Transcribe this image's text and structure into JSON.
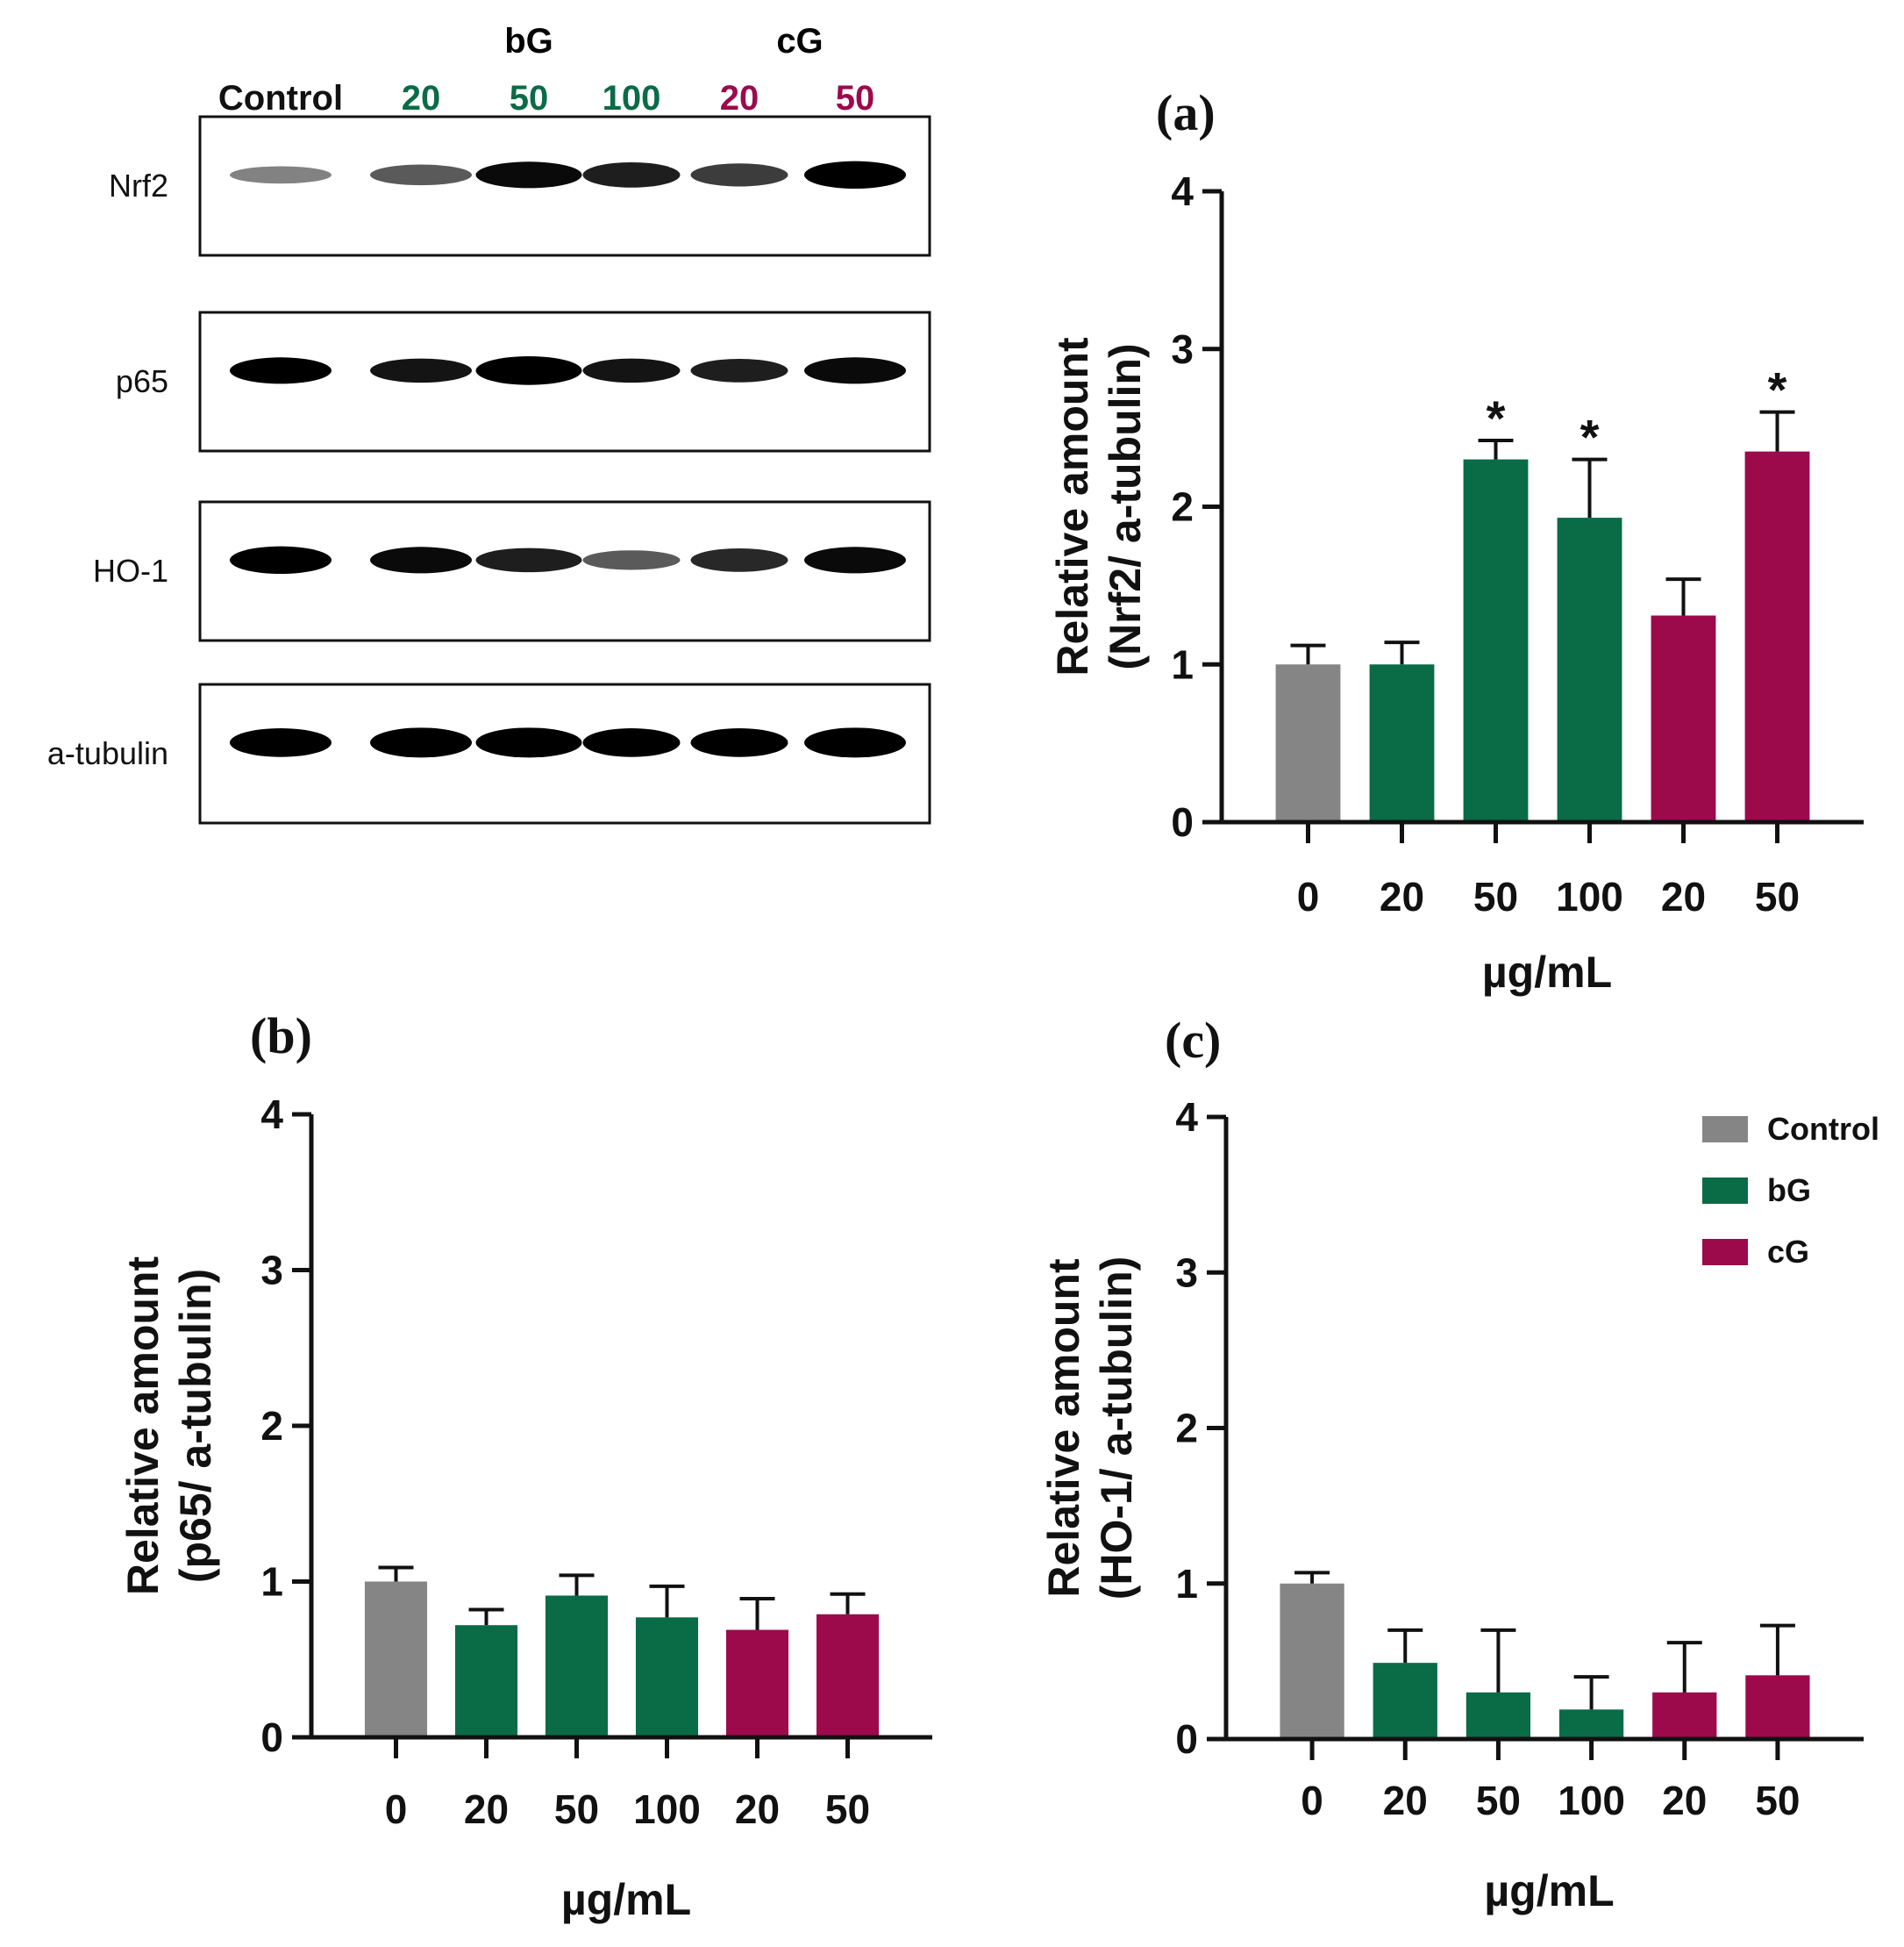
{
  "colors": {
    "Control": "#858585",
    "bG": "#0a6b47",
    "cG": "#9c0a4c",
    "axis": "#111111"
  },
  "blot": {
    "group_labels": [
      {
        "text": "bG",
        "color_key": "bG"
      },
      {
        "text": "cG",
        "color_key": "cG"
      }
    ],
    "lane_labels": [
      {
        "text": "Control",
        "color_key": "Control_text"
      },
      {
        "text": "20",
        "color_key": "bG"
      },
      {
        "text": "50",
        "color_key": "bG"
      },
      {
        "text": "100",
        "color_key": "bG"
      },
      {
        "text": "20",
        "color_key": "cG"
      },
      {
        "text": "50",
        "color_key": "cG"
      }
    ],
    "rows": [
      {
        "label": "Nrf2",
        "intensity": [
          0.35,
          0.55,
          0.95,
          0.85,
          0.7,
          1.0
        ],
        "thickness": [
          0.45,
          0.6,
          0.85,
          0.8,
          0.7,
          0.9
        ]
      },
      {
        "label": "p65",
        "intensity": [
          1.0,
          0.9,
          1.0,
          0.9,
          0.85,
          0.95
        ],
        "thickness": [
          0.85,
          0.75,
          0.95,
          0.75,
          0.72,
          0.85
        ]
      },
      {
        "label": "HO-1",
        "intensity": [
          1.0,
          0.95,
          0.85,
          0.55,
          0.8,
          0.95
        ],
        "thickness": [
          0.9,
          0.85,
          0.75,
          0.55,
          0.72,
          0.85
        ]
      },
      {
        "label": "a-tubulin",
        "intensity": [
          1.0,
          1.0,
          1.0,
          1.0,
          1.0,
          1.0
        ],
        "thickness": [
          0.95,
          1.0,
          1.0,
          0.95,
          0.95,
          1.0
        ]
      }
    ]
  },
  "chart_data": [
    {
      "id": "a",
      "panel_label": "(a)",
      "type": "bar",
      "title": "",
      "ylabel_line1": "Relative amount",
      "ylabel_line2": "(Nrf2/ a-tubulin)",
      "xlabel": "µg/mL",
      "ylim": [
        0,
        4
      ],
      "yticks": [
        "0",
        "1",
        "2",
        "3",
        "4"
      ],
      "categories": [
        "0",
        "20",
        "50",
        "100",
        "20",
        "50"
      ],
      "groups": [
        "Control",
        "bG",
        "bG",
        "bG",
        "cG",
        "cG"
      ],
      "values": [
        1.0,
        1.0,
        2.3,
        1.93,
        1.31,
        2.35
      ],
      "errors": [
        0.12,
        0.14,
        0.12,
        0.37,
        0.23,
        0.25
      ],
      "significance": [
        "",
        "",
        "*",
        "*",
        "",
        "*"
      ]
    },
    {
      "id": "b",
      "panel_label": "(b)",
      "type": "bar",
      "title": "",
      "ylabel_line1": "Relative amount",
      "ylabel_line2": "(p65/ a-tubulin)",
      "xlabel": "µg/mL",
      "ylim": [
        0,
        4
      ],
      "yticks": [
        "0",
        "1",
        "2",
        "3",
        "4"
      ],
      "categories": [
        "0",
        "20",
        "50",
        "100",
        "20",
        "50"
      ],
      "groups": [
        "Control",
        "bG",
        "bG",
        "bG",
        "cG",
        "cG"
      ],
      "values": [
        1.0,
        0.72,
        0.91,
        0.77,
        0.69,
        0.79
      ],
      "errors": [
        0.09,
        0.1,
        0.13,
        0.2,
        0.2,
        0.13
      ],
      "significance": [
        "",
        "",
        "",
        "",
        "",
        ""
      ]
    },
    {
      "id": "c",
      "panel_label": "(c)",
      "type": "bar",
      "title": "",
      "ylabel_line1": "Relative amount",
      "ylabel_line2": "(HO-1/ a-tubulin)",
      "xlabel": "µg/mL",
      "ylim": [
        0,
        4
      ],
      "yticks": [
        "0",
        "1",
        "2",
        "3",
        "4"
      ],
      "categories": [
        "0",
        "20",
        "50",
        "100",
        "20",
        "50"
      ],
      "groups": [
        "Control",
        "bG",
        "bG",
        "bG",
        "cG",
        "cG"
      ],
      "values": [
        1.0,
        0.49,
        0.3,
        0.19,
        0.3,
        0.41
      ],
      "errors": [
        0.07,
        0.21,
        0.4,
        0.21,
        0.32,
        0.32
      ],
      "significance": [
        "",
        "",
        "",
        "",
        "",
        ""
      ],
      "legend": {
        "position": "top-right",
        "entries": [
          {
            "label": "Control",
            "color_key": "Control"
          },
          {
            "label": "bG",
            "color_key": "bG"
          },
          {
            "label": "cG",
            "color_key": "cG"
          }
        ]
      }
    }
  ]
}
